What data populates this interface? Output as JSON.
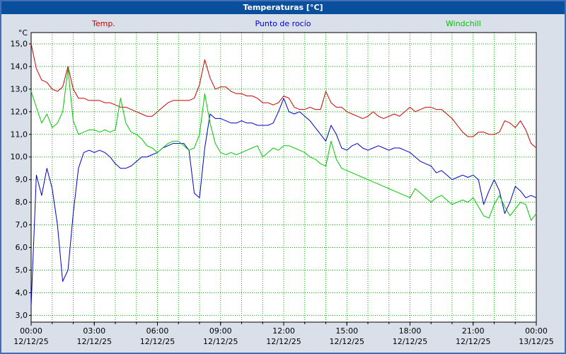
{
  "window": {
    "title": "Temperaturas [°C]"
  },
  "colors": {
    "frame_border": "#3f6fb5",
    "background": "#d9e0ea",
    "title_bar_bg": "#0a4f9e",
    "title_text": "#ffffff",
    "plot_bg": "#ffffff",
    "plot_border": "#000000",
    "grid": "#00b400",
    "tick_text": "#000000",
    "temp": "#cc0000",
    "dew_point": "#0000cc",
    "windchill": "#00c800"
  },
  "chart_data": {
    "type": "line",
    "title": "Temperaturas [°C]",
    "ylabel": "°C",
    "xlabel": "",
    "ylim": [
      2.7,
      15.5
    ],
    "xlim_hours": [
      0,
      24
    ],
    "x_step_hours": 0.25,
    "grid": {
      "visible": true,
      "style": "dashed",
      "h_interval_deg": 1,
      "v_interval_hours": 1
    },
    "legend_position": "top",
    "y_ticks": [
      {
        "value": 15,
        "label": "15,0"
      },
      {
        "value": 14,
        "label": "14,0"
      },
      {
        "value": 13,
        "label": "13,0"
      },
      {
        "value": 12,
        "label": "12,0"
      },
      {
        "value": 11,
        "label": "11,0"
      },
      {
        "value": 10,
        "label": "10,0"
      },
      {
        "value": 9,
        "label": "9,0"
      },
      {
        "value": 8,
        "label": "8,0"
      },
      {
        "value": 7,
        "label": "7,0"
      },
      {
        "value": 6,
        "label": "6,0"
      },
      {
        "value": 5,
        "label": "5,0"
      },
      {
        "value": 4,
        "label": "4,0"
      },
      {
        "value": 3,
        "label": "3,0"
      }
    ],
    "x_ticks": [
      {
        "hour": 0,
        "time": "00:00",
        "date": "12/12/25"
      },
      {
        "hour": 3,
        "time": "03:00",
        "date": "12/12/25"
      },
      {
        "hour": 6,
        "time": "06:00",
        "date": "12/12/25"
      },
      {
        "hour": 9,
        "time": "09:00",
        "date": "12/12/25"
      },
      {
        "hour": 12,
        "time": "12:00",
        "date": "12/12/25"
      },
      {
        "hour": 15,
        "time": "15:00",
        "date": "12/12/25"
      },
      {
        "hour": 18,
        "time": "18:00",
        "date": "12/12/25"
      },
      {
        "hour": 21,
        "time": "21:00",
        "date": "12/12/25"
      },
      {
        "hour": 24,
        "time": "00:00",
        "date": "13/12/25"
      }
    ],
    "series": [
      {
        "name": "Temp.",
        "color": "#cc0000",
        "values": [
          15.0,
          13.9,
          13.4,
          13.3,
          13.0,
          12.9,
          13.1,
          14.0,
          13.0,
          12.6,
          12.6,
          12.5,
          12.5,
          12.5,
          12.4,
          12.4,
          12.3,
          12.2,
          12.2,
          12.1,
          12.0,
          11.9,
          11.8,
          11.8,
          12.0,
          12.2,
          12.4,
          12.5,
          12.5,
          12.5,
          12.5,
          12.6,
          13.2,
          14.3,
          13.5,
          13.0,
          13.1,
          13.1,
          12.9,
          12.8,
          12.8,
          12.7,
          12.7,
          12.6,
          12.4,
          12.4,
          12.3,
          12.4,
          12.7,
          12.6,
          12.2,
          12.1,
          12.1,
          12.2,
          12.1,
          12.1,
          12.9,
          12.4,
          12.2,
          12.2,
          12.0,
          11.9,
          11.8,
          11.7,
          11.8,
          12.0,
          11.8,
          11.7,
          11.8,
          11.9,
          11.8,
          12.0,
          12.2,
          12.0,
          12.1,
          12.2,
          12.2,
          12.1,
          12.1,
          11.9,
          11.7,
          11.4,
          11.1,
          10.9,
          10.9,
          11.1,
          11.1,
          11.0,
          11.0,
          11.1,
          11.6,
          11.5,
          11.3,
          11.6,
          11.2,
          10.6,
          10.4
        ]
      },
      {
        "name": "Punto de rocío",
        "color": "#0000cc",
        "values": [
          3.4,
          9.2,
          8.3,
          9.5,
          8.6,
          7.0,
          4.5,
          5.0,
          7.5,
          9.5,
          10.2,
          10.3,
          10.2,
          10.3,
          10.2,
          10.0,
          9.7,
          9.5,
          9.5,
          9.6,
          9.8,
          10.0,
          10.0,
          10.1,
          10.2,
          10.4,
          10.5,
          10.6,
          10.6,
          10.6,
          10.3,
          8.4,
          8.2,
          10.4,
          11.9,
          11.7,
          11.7,
          11.6,
          11.5,
          11.5,
          11.6,
          11.5,
          11.5,
          11.4,
          11.4,
          11.4,
          11.5,
          12.0,
          12.6,
          12.0,
          11.9,
          12.0,
          11.8,
          11.6,
          11.3,
          11.0,
          10.7,
          11.4,
          11.0,
          10.4,
          10.3,
          10.5,
          10.6,
          10.4,
          10.3,
          10.4,
          10.5,
          10.4,
          10.3,
          10.4,
          10.4,
          10.3,
          10.2,
          10.0,
          9.8,
          9.7,
          9.6,
          9.3,
          9.4,
          9.2,
          9.0,
          9.1,
          9.2,
          9.1,
          9.2,
          9.0,
          7.9,
          8.5,
          9.0,
          8.5,
          7.5,
          8.0,
          8.7,
          8.5,
          8.2,
          8.3,
          8.2
        ]
      },
      {
        "name": "Windchill",
        "color": "#00c800",
        "values": [
          12.9,
          12.2,
          11.5,
          11.9,
          11.3,
          11.5,
          12.0,
          13.9,
          11.6,
          11.0,
          11.1,
          11.2,
          11.2,
          11.1,
          11.2,
          11.1,
          11.2,
          12.6,
          11.5,
          11.1,
          11.0,
          10.8,
          10.5,
          10.4,
          10.2,
          10.4,
          10.6,
          10.7,
          10.7,
          10.5,
          10.3,
          10.4,
          11.0,
          12.8,
          11.5,
          10.6,
          10.2,
          10.1,
          10.2,
          10.1,
          10.2,
          10.3,
          10.4,
          10.5,
          10.0,
          10.2,
          10.4,
          10.3,
          10.5,
          10.5,
          10.4,
          10.3,
          10.2,
          10.0,
          9.9,
          9.7,
          9.6,
          10.7,
          9.9,
          9.5,
          9.4,
          9.3,
          9.2,
          9.1,
          9.0,
          8.9,
          8.8,
          8.7,
          8.6,
          8.5,
          8.4,
          8.3,
          8.2,
          8.6,
          8.4,
          8.2,
          8.0,
          8.2,
          8.3,
          8.1,
          7.9,
          8.0,
          8.1,
          8.0,
          8.2,
          7.8,
          7.4,
          7.3,
          7.9,
          8.3,
          7.8,
          7.4,
          7.7,
          8.0,
          7.9,
          7.2,
          7.5
        ]
      }
    ]
  }
}
